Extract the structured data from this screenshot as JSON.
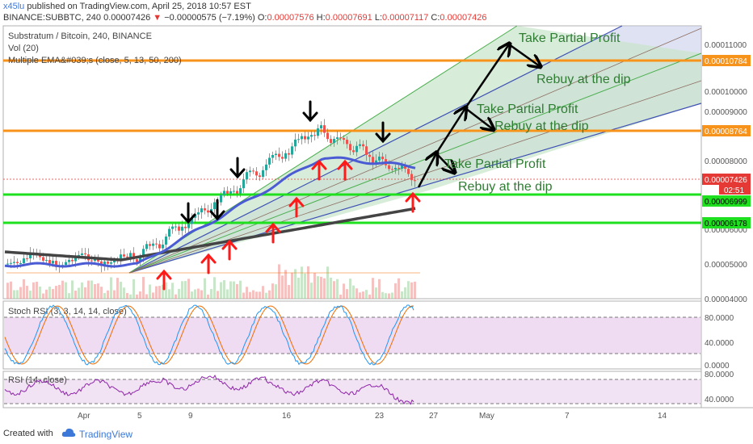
{
  "header": {
    "user": "x45lu",
    "published": "published on TradingView.com, April 25, 2018 10:57 EST",
    "symbol": "BINANCE:SUBBTC, 240",
    "price": "0.00007426",
    "change": "−0.00000575 (−7.19%)",
    "o_label": "O:",
    "o_value": "0.00007576",
    "h_label": "H:",
    "h_value": "0.00007691",
    "l_label": "L:",
    "l_value": "0.00007117",
    "c_label": "C:",
    "c_value": "0.00007426"
  },
  "main_legend": {
    "title": "Substratum / Bitcoin, 240, BINANCE",
    "vol": "Vol (20)",
    "ema": "Multiple EMA&#039;s (close, 5, 13, 50, 200)"
  },
  "stoch_legend": "Stoch RSI (3, 3, 14, 14, close)",
  "rsi_legend": "RSI (14, close)",
  "price_axis": {
    "ticks": [
      "0.00011000",
      "0.00010000",
      "0.00009000",
      "0.00008000",
      "0.00006000",
      "0.00005000",
      "0.00004000"
    ],
    "badges": {
      "top": "0.00010784",
      "mid": "0.00008764",
      "last": "0.00007426",
      "timer": "02:51",
      "g1": "0.00006999",
      "g2": "0.00006178"
    }
  },
  "stoch_axis": [
    "80.0000",
    "40.0000",
    "0.0000"
  ],
  "rsi_axis": [
    "80.0000",
    "40.0000"
  ],
  "time_axis": [
    "Apr",
    "5",
    "9",
    "16",
    "23",
    "27",
    "May",
    "7",
    "14"
  ],
  "annotations": {
    "tp1": "Take Partial Profit",
    "rb1": "Rebuy at the dip",
    "tp2": "Take Partial Profit",
    "rb2": "Rebuy at the dip",
    "tp3": "Take Partial Profit",
    "rb3": "Rebuy at the dip"
  },
  "footer": {
    "created": "Created with",
    "brand": "TradingView"
  },
  "colors": {
    "orange": "#f7931a",
    "green": "#1fe01f",
    "blue_ema": "#4a5bd4",
    "grey_ema": "#444444",
    "red_arrow": "#ff1a1a",
    "fan_blue": "#3f51b5",
    "fan_green": "#4caf50",
    "stoch_fill": "#e1bee7",
    "up": "#26a69a",
    "down": "#ef5350"
  }
}
